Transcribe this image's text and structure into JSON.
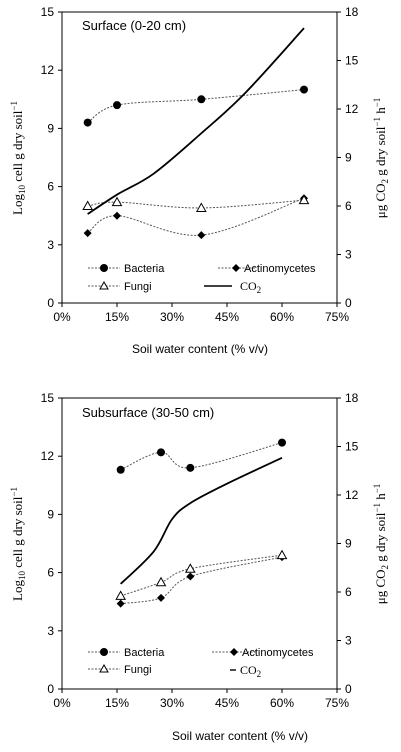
{
  "chart_data": [
    {
      "type": "line",
      "title": "Surface (0-20 cm)",
      "xlabel": "Soil water content (% v/v)",
      "ylabel": "Log10 cell g dry soil⁻¹",
      "y2label": "μg CO2 g dry soil⁻¹ h⁻¹",
      "xlim": [
        0,
        75
      ],
      "ylim": [
        0,
        15
      ],
      "y2lim": [
        0,
        18
      ],
      "xticks": [
        "0%",
        "15%",
        "30%",
        "45%",
        "60%",
        "75%"
      ],
      "yticks": [
        "0",
        "3",
        "6",
        "9",
        "12",
        "15"
      ],
      "y2ticks": [
        "0",
        "3",
        "6",
        "9",
        "12",
        "15",
        "18"
      ],
      "legend_position": "lower-center",
      "series": [
        {
          "name": "Bacteria",
          "axis": "left",
          "marker": "circle",
          "x": [
            7,
            15,
            38,
            66
          ],
          "y": [
            9.3,
            10.2,
            10.5,
            11.0
          ]
        },
        {
          "name": "Actinomycetes",
          "axis": "left",
          "marker": "diamond",
          "x": [
            7,
            15,
            38,
            66
          ],
          "y": [
            3.6,
            4.5,
            3.5,
            5.4
          ]
        },
        {
          "name": "Fungi",
          "axis": "left",
          "marker": "triangle",
          "x": [
            7,
            15,
            38,
            66
          ],
          "y": [
            5.0,
            5.2,
            4.9,
            5.3
          ]
        },
        {
          "name": "CO2",
          "axis": "right",
          "marker": "none",
          "x": [
            7,
            15,
            25,
            38,
            50,
            66
          ],
          "y": [
            5.5,
            6.7,
            8.0,
            10.5,
            13.0,
            17.0
          ]
        }
      ]
    },
    {
      "type": "line",
      "title": "Subsurface (30-50 cm)",
      "xlabel": "Soil water content (% v/v)",
      "ylabel": "Log10 cell g dry soil⁻¹",
      "y2label": "μg CO2 g dry soil⁻¹ h⁻¹",
      "xlim": [
        0,
        75
      ],
      "ylim": [
        0,
        15
      ],
      "y2lim": [
        0,
        18
      ],
      "xticks": [
        "0%",
        "15%",
        "30%",
        "45%",
        "60%",
        "75%"
      ],
      "yticks": [
        "0",
        "3",
        "6",
        "9",
        "12",
        "15"
      ],
      "y2ticks": [
        "0",
        "3",
        "6",
        "9",
        "12",
        "15",
        "18"
      ],
      "legend_position": "lower-center",
      "series": [
        {
          "name": "Bacteria",
          "axis": "left",
          "marker": "circle",
          "x": [
            16,
            27,
            35,
            60
          ],
          "y": [
            11.3,
            12.2,
            11.4,
            12.7
          ]
        },
        {
          "name": "Actinomycetes",
          "axis": "left",
          "marker": "diamond",
          "x": [
            16,
            27,
            35,
            60
          ],
          "y": [
            4.4,
            4.7,
            5.8,
            6.8
          ]
        },
        {
          "name": "Fungi",
          "axis": "left",
          "marker": "triangle",
          "x": [
            16,
            27,
            35,
            60
          ],
          "y": [
            4.8,
            5.5,
            6.2,
            6.9
          ]
        },
        {
          "name": "CO2",
          "axis": "right",
          "marker": "none",
          "x": [
            16,
            25,
            30,
            35,
            45,
            60
          ],
          "y": [
            6.5,
            8.5,
            10.5,
            11.5,
            12.7,
            14.3
          ]
        }
      ]
    }
  ],
  "legend_labels": {
    "bacteria": "Bacteria",
    "actinomycetes": "Actinomycetes",
    "fungi": "Fungi",
    "co2": "CO",
    "co2_sub": "2"
  },
  "axis_titles": {
    "left_main": "Log",
    "left_sub": "10",
    "left_rest": " cell g dry soil",
    "left_sup": "−1",
    "right_main": "μg CO",
    "right_sub": "2",
    "right_rest": " g dry soil",
    "right_sup1": "−1",
    "right_h": " h",
    "right_sup2": "−1",
    "x": "Soil water content (% v/v)"
  },
  "panels": [
    {
      "title": "Surface (0-20 cm)"
    },
    {
      "title": "Subsurface (30-50 cm)"
    }
  ]
}
